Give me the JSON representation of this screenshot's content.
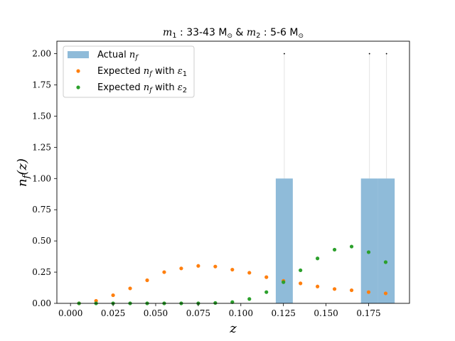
{
  "chart_data": {
    "type": "bar",
    "title": "m1 : 33-43 M⊙ & m2 : 5-6 M⊙",
    "xlabel": "z",
    "ylabel": "n_f(z)",
    "xlim": [
      -0.008,
      0.199
    ],
    "ylim": [
      0,
      2.1
    ],
    "xticks": [
      "0.000",
      "0.025",
      "0.050",
      "0.075",
      "0.100",
      "0.125",
      "0.150",
      "0.175"
    ],
    "yticks": [
      "0.00",
      "0.25",
      "0.50",
      "0.75",
      "1.00",
      "1.25",
      "1.50",
      "1.75",
      "2.00"
    ],
    "bars": {
      "name": "Actual n_f",
      "bins": [
        {
          "x0": 0.1205,
          "x1": 0.1305,
          "value": 1.0
        },
        {
          "x0": 0.1705,
          "x1": 0.1805,
          "value": 1.0
        },
        {
          "x0": 0.1805,
          "x1": 0.1903,
          "value": 1.0
        }
      ],
      "color": "#1f77b4"
    },
    "upper_markers": [
      {
        "x": 0.1255,
        "y": 2.0
      },
      {
        "x": 0.1755,
        "y": 2.0
      },
      {
        "x": 0.1855,
        "y": 2.0
      }
    ],
    "series": [
      {
        "name": "Expected n_f with ε1",
        "color": "#ff7f0e",
        "x": [
          0.005,
          0.015,
          0.025,
          0.035,
          0.045,
          0.055,
          0.065,
          0.075,
          0.085,
          0.095,
          0.105,
          0.115,
          0.125,
          0.135,
          0.145,
          0.155,
          0.165,
          0.175,
          0.185
        ],
        "y": [
          0.0,
          0.02,
          0.065,
          0.12,
          0.185,
          0.25,
          0.28,
          0.3,
          0.295,
          0.27,
          0.245,
          0.21,
          0.18,
          0.16,
          0.135,
          0.115,
          0.105,
          0.09,
          0.08
        ]
      },
      {
        "name": "Expected n_f with ε2",
        "color": "#2ca02c",
        "x": [
          0.005,
          0.015,
          0.025,
          0.035,
          0.045,
          0.055,
          0.065,
          0.075,
          0.085,
          0.095,
          0.105,
          0.115,
          0.125,
          0.135,
          0.145,
          0.155,
          0.165,
          0.175,
          0.185
        ],
        "y": [
          0.0,
          0.0,
          0.0,
          0.0,
          0.0,
          0.0,
          0.0,
          0.0,
          0.003,
          0.01,
          0.035,
          0.09,
          0.17,
          0.265,
          0.36,
          0.43,
          0.455,
          0.41,
          0.33
        ]
      }
    ],
    "legend": {
      "placement": "top-left",
      "entries": [
        "Actual n_f",
        "Expected n_f with ε1",
        "Expected n_f with ε2"
      ]
    },
    "grid": false
  }
}
